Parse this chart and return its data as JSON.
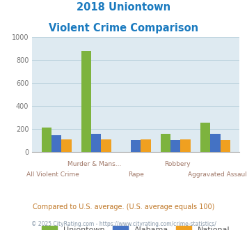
{
  "title_line1": "2018 Uniontown",
  "title_line2": "Violent Crime Comparison",
  "title_color": "#1a7abf",
  "categories": [
    "All Violent Crime",
    "Murder & Mans...",
    "Rape",
    "Robbery",
    "Aggravated Assault"
  ],
  "uniontown": [
    210,
    880,
    0,
    155,
    252
  ],
  "alabama": [
    143,
    158,
    100,
    100,
    158
  ],
  "national": [
    107,
    107,
    108,
    108,
    102
  ],
  "colors": {
    "uniontown": "#7db33e",
    "alabama": "#4472c4",
    "national": "#f0a020"
  },
  "legend_labels": [
    "Uniontown",
    "Alabama",
    "National"
  ],
  "ylim": [
    0,
    1000
  ],
  "yticks": [
    0,
    200,
    400,
    600,
    800,
    1000
  ],
  "plot_bg": "#deeaf1",
  "grid_color": "#b8d0dc",
  "footnote": "Compared to U.S. average. (U.S. average equals 100)",
  "footnote2": "© 2025 CityRating.com - https://www.cityrating.com/crime-statistics/",
  "footnote_color": "#c07828",
  "footnote2_color": "#8899aa",
  "xlabel_color": "#a07868",
  "bar_width": 0.25,
  "row1_indices": [
    1,
    3
  ],
  "row2_indices": [
    0,
    2,
    4
  ]
}
